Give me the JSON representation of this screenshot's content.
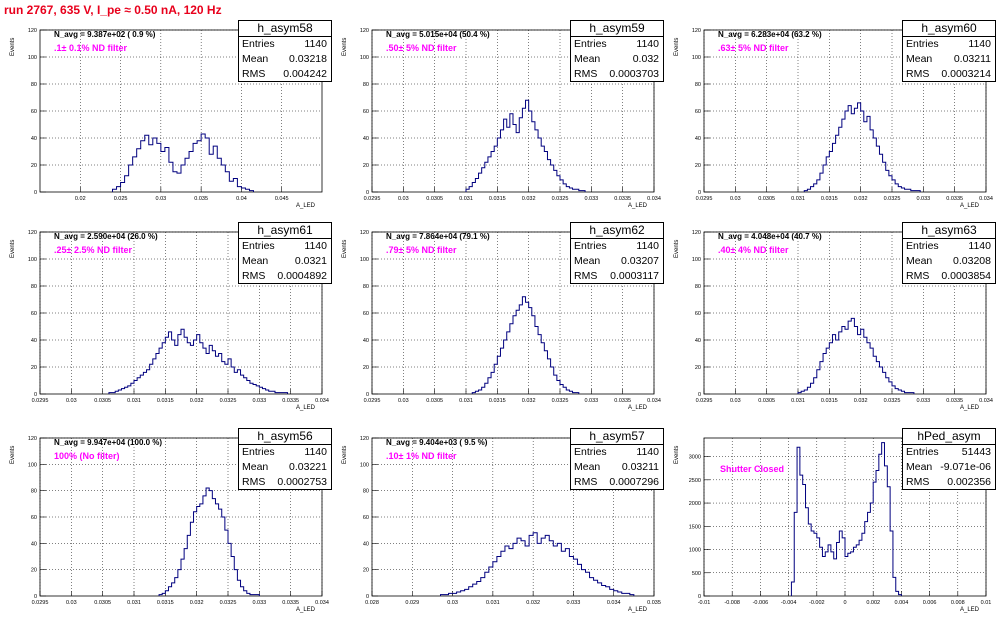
{
  "header": {
    "title": "run 2767,   635 V, I_pe ≈ 0.50 nA, 120 Hz"
  },
  "chart_data": [
    {
      "type": "histogram",
      "title": "h_asym58",
      "xlabel": "A_LED",
      "ylabel": "Events",
      "xlim": [
        0.015,
        0.05
      ],
      "ylim": [
        0,
        120
      ],
      "xticks": [
        "0.02",
        "0.025",
        "0.03",
        "0.035",
        "0.04",
        "0.045"
      ],
      "xtick_values": [
        0.02,
        0.025,
        0.03,
        0.035,
        0.04,
        0.045
      ],
      "yticks": [
        0,
        20,
        40,
        60,
        80,
        100,
        120
      ],
      "grid": true,
      "stats": {
        "entries": "1140",
        "mean": "0.03218",
        "rms": "0.004242"
      },
      "annotations": {
        "n_avg": "N_avg = 9.387e+02 ( 0.9 %)",
        "filter": ".1± 0.1% ND filter"
      },
      "bin_edges": [
        0.024,
        0.0245,
        0.025,
        0.0255,
        0.026,
        0.0265,
        0.027,
        0.0275,
        0.028,
        0.0285,
        0.029,
        0.0295,
        0.03,
        0.0305,
        0.031,
        0.0315,
        0.032,
        0.0325,
        0.033,
        0.0335,
        0.034,
        0.0345,
        0.035,
        0.0355,
        0.036,
        0.0365,
        0.037,
        0.0375,
        0.038,
        0.0385,
        0.039,
        0.0395,
        0.04,
        0.0405,
        0.041,
        0.0415
      ],
      "counts": [
        2,
        4,
        7,
        12,
        20,
        26,
        32,
        38,
        42,
        35,
        40,
        36,
        30,
        33,
        22,
        15,
        14,
        20,
        25,
        30,
        36,
        38,
        43,
        40,
        28,
        34,
        25,
        20,
        15,
        8,
        10,
        4,
        3,
        2,
        1
      ]
    },
    {
      "type": "histogram",
      "title": "h_asym59",
      "xlabel": "A_LED",
      "ylabel": "Events",
      "xlim": [
        0.0295,
        0.034
      ],
      "ylim": [
        0,
        120
      ],
      "xticks": [
        "0.0295",
        "0.03",
        "0.0305",
        "0.031",
        "0.0315",
        "0.032",
        "0.0325",
        "0.033",
        "0.0335",
        "0.034"
      ],
      "xtick_values": [
        0.0295,
        0.03,
        0.0305,
        0.031,
        0.0315,
        0.032,
        0.0325,
        0.033,
        0.0335,
        0.034
      ],
      "yticks": [
        0,
        20,
        40,
        60,
        80,
        100,
        120
      ],
      "grid": true,
      "stats": {
        "entries": "1140",
        "mean": "0.032",
        "rms": "0.0003703"
      },
      "annotations": {
        "n_avg": "N_avg = 5.015e+04 (50.4 %)",
        "filter": ".50± 5% ND filter"
      },
      "bin_edges": [
        0.031,
        0.03105,
        0.0311,
        0.03115,
        0.0312,
        0.03125,
        0.0313,
        0.03135,
        0.0314,
        0.03145,
        0.0315,
        0.03155,
        0.0316,
        0.03165,
        0.0317,
        0.03175,
        0.0318,
        0.03185,
        0.0319,
        0.03195,
        0.032,
        0.03205,
        0.0321,
        0.03215,
        0.0322,
        0.03225,
        0.0323,
        0.03235,
        0.0324,
        0.03245,
        0.0325,
        0.03255,
        0.0326,
        0.03265,
        0.0327,
        0.03275,
        0.0328,
        0.03285,
        0.0329
      ],
      "counts": [
        2,
        4,
        7,
        10,
        14,
        18,
        22,
        26,
        30,
        34,
        40,
        46,
        54,
        48,
        58,
        50,
        44,
        55,
        62,
        68,
        60,
        52,
        46,
        40,
        34,
        30,
        24,
        20,
        16,
        12,
        9,
        6,
        4,
        3,
        2,
        2,
        1,
        1
      ]
    },
    {
      "type": "histogram",
      "title": "h_asym60",
      "xlabel": "A_LED",
      "ylabel": "Events",
      "xlim": [
        0.0295,
        0.034
      ],
      "ylim": [
        0,
        120
      ],
      "xticks": [
        "0.0295",
        "0.03",
        "0.0305",
        "0.031",
        "0.0315",
        "0.032",
        "0.0325",
        "0.033",
        "0.0335",
        "0.034"
      ],
      "xtick_values": [
        0.0295,
        0.03,
        0.0305,
        0.031,
        0.0315,
        0.032,
        0.0325,
        0.033,
        0.0335,
        0.034
      ],
      "yticks": [
        0,
        20,
        40,
        60,
        80,
        100,
        120
      ],
      "grid": true,
      "stats": {
        "entries": "1140",
        "mean": "0.03211",
        "rms": "0.0003214"
      },
      "annotations": {
        "n_avg": "N_avg = 6.283e+04 (63.2 %)",
        "filter": ".63± 5% ND filter"
      },
      "bin_edges": [
        0.0311,
        0.03115,
        0.0312,
        0.03125,
        0.0313,
        0.03135,
        0.0314,
        0.03145,
        0.0315,
        0.03155,
        0.0316,
        0.03165,
        0.0317,
        0.03175,
        0.0318,
        0.03185,
        0.0319,
        0.03195,
        0.032,
        0.03205,
        0.0321,
        0.03215,
        0.0322,
        0.03225,
        0.0323,
        0.03235,
        0.0324,
        0.03245,
        0.0325,
        0.03255,
        0.0326,
        0.03265,
        0.0327,
        0.03275,
        0.0328,
        0.03285,
        0.0329,
        0.03295
      ],
      "counts": [
        1,
        2,
        4,
        6,
        9,
        14,
        20,
        26,
        30,
        36,
        42,
        48,
        54,
        60,
        64,
        58,
        62,
        66,
        60,
        52,
        56,
        46,
        40,
        34,
        28,
        22,
        16,
        12,
        9,
        6,
        4,
        3,
        2,
        2,
        1,
        1,
        1
      ]
    },
    {
      "type": "histogram",
      "title": "h_asym61",
      "xlabel": "A_LED",
      "ylabel": "Events",
      "xlim": [
        0.0295,
        0.034
      ],
      "ylim": [
        0,
        120
      ],
      "xticks": [
        "0.0295",
        "0.03",
        "0.0305",
        "0.031",
        "0.0315",
        "0.032",
        "0.0325",
        "0.033",
        "0.0335",
        "0.034"
      ],
      "xtick_values": [
        0.0295,
        0.03,
        0.0305,
        0.031,
        0.0315,
        0.032,
        0.0325,
        0.033,
        0.0335,
        0.034
      ],
      "yticks": [
        0,
        20,
        40,
        60,
        80,
        100,
        120
      ],
      "grid": true,
      "stats": {
        "entries": "1140",
        "mean": "0.0321",
        "rms": "0.0004892"
      },
      "annotations": {
        "n_avg": "N_avg = 2.590e+04 (26.0 %)",
        "filter": ".25± 2.5% ND filter"
      },
      "bin_edges": [
        0.0306,
        0.03065,
        0.0307,
        0.03075,
        0.0308,
        0.03085,
        0.0309,
        0.03095,
        0.031,
        0.03105,
        0.0311,
        0.03115,
        0.0312,
        0.03125,
        0.0313,
        0.03135,
        0.0314,
        0.03145,
        0.0315,
        0.03155,
        0.0316,
        0.03165,
        0.0317,
        0.03175,
        0.0318,
        0.03185,
        0.0319,
        0.03195,
        0.032,
        0.03205,
        0.0321,
        0.03215,
        0.0322,
        0.03225,
        0.0323,
        0.03235,
        0.0324,
        0.03245,
        0.0325,
        0.03255,
        0.0326,
        0.03265,
        0.0327,
        0.03275,
        0.0328,
        0.03285,
        0.0329,
        0.03295,
        0.033,
        0.03305,
        0.0331,
        0.03315,
        0.0332,
        0.03325,
        0.0333,
        0.03335,
        0.0334,
        0.03345
      ],
      "counts": [
        1,
        1,
        2,
        3,
        4,
        5,
        6,
        8,
        10,
        12,
        14,
        16,
        18,
        22,
        26,
        30,
        34,
        38,
        42,
        46,
        40,
        36,
        44,
        48,
        42,
        38,
        36,
        40,
        44,
        38,
        34,
        30,
        36,
        32,
        28,
        30,
        24,
        22,
        26,
        20,
        16,
        18,
        14,
        12,
        10,
        8,
        7,
        6,
        5,
        4,
        3,
        2,
        2,
        1,
        1,
        1,
        1
      ]
    },
    {
      "type": "histogram",
      "title": "h_asym62",
      "xlabel": "A_LED",
      "ylabel": "Events",
      "xlim": [
        0.0295,
        0.034
      ],
      "ylim": [
        0,
        120
      ],
      "xticks": [
        "0.0295",
        "0.03",
        "0.0305",
        "0.031",
        "0.0315",
        "0.032",
        "0.0325",
        "0.033",
        "0.0335",
        "0.034"
      ],
      "xtick_values": [
        0.0295,
        0.03,
        0.0305,
        0.031,
        0.0315,
        0.032,
        0.0325,
        0.033,
        0.0335,
        0.034
      ],
      "yticks": [
        0,
        20,
        40,
        60,
        80,
        100,
        120
      ],
      "grid": true,
      "stats": {
        "entries": "1140",
        "mean": "0.03207",
        "rms": "0.0003117"
      },
      "annotations": {
        "n_avg": "N_avg = 7.864e+04 (79.1 %)",
        "filter": ".79± 5% ND filter"
      },
      "bin_edges": [
        0.0311,
        0.03115,
        0.0312,
        0.03125,
        0.0313,
        0.03135,
        0.0314,
        0.03145,
        0.0315,
        0.03155,
        0.0316,
        0.03165,
        0.0317,
        0.03175,
        0.0318,
        0.03185,
        0.0319,
        0.03195,
        0.032,
        0.03205,
        0.0321,
        0.03215,
        0.0322,
        0.03225,
        0.0323,
        0.03235,
        0.0324,
        0.03245,
        0.0325,
        0.03255,
        0.0326,
        0.03265,
        0.0327,
        0.03275,
        0.0328
      ],
      "counts": [
        1,
        2,
        3,
        5,
        8,
        12,
        16,
        22,
        28,
        34,
        40,
        46,
        52,
        58,
        62,
        66,
        72,
        68,
        64,
        58,
        50,
        44,
        38,
        32,
        26,
        20,
        14,
        10,
        7,
        5,
        3,
        2,
        1,
        1
      ]
    },
    {
      "type": "histogram",
      "title": "h_asym63",
      "xlabel": "A_LED",
      "ylabel": "Events",
      "xlim": [
        0.0295,
        0.034
      ],
      "ylim": [
        0,
        120
      ],
      "xticks": [
        "0.0295",
        "0.03",
        "0.0305",
        "0.031",
        "0.0315",
        "0.032",
        "0.0325",
        "0.033",
        "0.0335",
        "0.034"
      ],
      "xtick_values": [
        0.0295,
        0.03,
        0.0305,
        0.031,
        0.0315,
        0.032,
        0.0325,
        0.033,
        0.0335,
        0.034
      ],
      "yticks": [
        0,
        20,
        40,
        60,
        80,
        100,
        120
      ],
      "grid": true,
      "stats": {
        "entries": "1140",
        "mean": "0.03208",
        "rms": "0.0003854"
      },
      "annotations": {
        "n_avg": "N_avg = 4.048e+04 (40.7 %)",
        "filter": ".40± 4% ND filter"
      },
      "bin_edges": [
        0.031,
        0.03105,
        0.0311,
        0.03115,
        0.0312,
        0.03125,
        0.0313,
        0.03135,
        0.0314,
        0.03145,
        0.0315,
        0.03155,
        0.0316,
        0.03165,
        0.0317,
        0.03175,
        0.0318,
        0.03185,
        0.0319,
        0.03195,
        0.032,
        0.03205,
        0.0321,
        0.03215,
        0.0322,
        0.03225,
        0.0323,
        0.03235,
        0.0324,
        0.03245,
        0.0325,
        0.03255,
        0.0326,
        0.03265,
        0.0327,
        0.03275,
        0.0328,
        0.03285
      ],
      "counts": [
        1,
        2,
        3,
        5,
        8,
        12,
        18,
        24,
        30,
        34,
        38,
        44,
        40,
        46,
        50,
        48,
        54,
        56,
        50,
        44,
        48,
        42,
        38,
        34,
        28,
        24,
        20,
        16,
        12,
        9,
        6,
        4,
        3,
        2,
        1,
        1,
        1
      ]
    },
    {
      "type": "histogram",
      "title": "h_asym56",
      "xlabel": "A_LED",
      "ylabel": "Events",
      "xlim": [
        0.0295,
        0.034
      ],
      "ylim": [
        0,
        120
      ],
      "xticks": [
        "0.0295",
        "0.03",
        "0.0305",
        "0.031",
        "0.0315",
        "0.032",
        "0.0325",
        "0.033",
        "0.0335",
        "0.034"
      ],
      "xtick_values": [
        0.0295,
        0.03,
        0.0305,
        0.031,
        0.0315,
        0.032,
        0.0325,
        0.033,
        0.0335,
        0.034
      ],
      "yticks": [
        0,
        20,
        40,
        60,
        80,
        100,
        120
      ],
      "grid": true,
      "stats": {
        "entries": "1140",
        "mean": "0.03221",
        "rms": "0.0002753"
      },
      "annotations": {
        "n_avg": "N_avg = 9.947e+04 (100.0 %)",
        "filter": "100% (No filter)"
      },
      "bin_edges": [
        0.0314,
        0.03145,
        0.0315,
        0.03155,
        0.0316,
        0.03165,
        0.0317,
        0.03175,
        0.0318,
        0.03185,
        0.0319,
        0.03195,
        0.032,
        0.03205,
        0.0321,
        0.03215,
        0.0322,
        0.03225,
        0.0323,
        0.03235,
        0.0324,
        0.03245,
        0.0325,
        0.03255,
        0.0326,
        0.03265,
        0.0327,
        0.03275,
        0.0328,
        0.03285,
        0.0329,
        0.03295,
        0.033
      ],
      "counts": [
        1,
        2,
        4,
        7,
        10,
        14,
        20,
        28,
        36,
        46,
        56,
        64,
        68,
        70,
        76,
        82,
        80,
        74,
        70,
        66,
        60,
        50,
        40,
        30,
        20,
        12,
        7,
        4,
        2,
        1,
        1,
        1
      ]
    },
    {
      "type": "histogram",
      "title": "h_asym57",
      "xlabel": "A_LED",
      "ylabel": "Events",
      "xlim": [
        0.028,
        0.035
      ],
      "ylim": [
        0,
        120
      ],
      "xticks": [
        "0.028",
        "0.029",
        "0.03",
        "0.031",
        "0.032",
        "0.033",
        "0.034",
        "0.035"
      ],
      "xtick_values": [
        0.028,
        0.029,
        0.03,
        0.031,
        0.032,
        0.033,
        0.034,
        0.035
      ],
      "yticks": [
        0,
        20,
        40,
        60,
        80,
        100,
        120
      ],
      "grid": true,
      "stats": {
        "entries": "1140",
        "mean": "0.03211",
        "rms": "0.0007296"
      },
      "annotations": {
        "n_avg": "N_avg = 9.404e+03 ( 9.5 %)",
        "filter": ".10± 1% ND filter"
      },
      "bin_edges": [
        0.0297,
        0.0298,
        0.0299,
        0.03,
        0.0301,
        0.0302,
        0.0303,
        0.0304,
        0.0305,
        0.0306,
        0.0307,
        0.0308,
        0.0309,
        0.031,
        0.0311,
        0.0312,
        0.0313,
        0.0314,
        0.0315,
        0.0316,
        0.0317,
        0.0318,
        0.0319,
        0.032,
        0.0321,
        0.0322,
        0.0323,
        0.0324,
        0.0325,
        0.0326,
        0.0327,
        0.0328,
        0.0329,
        0.033,
        0.0331,
        0.0332,
        0.0333,
        0.0334,
        0.0335,
        0.0336,
        0.0337,
        0.0338,
        0.0339,
        0.034,
        0.0341,
        0.0342,
        0.0343,
        0.0344,
        0.0345
      ],
      "counts": [
        1,
        1,
        2,
        2,
        3,
        4,
        5,
        7,
        9,
        11,
        14,
        18,
        22,
        26,
        30,
        34,
        38,
        36,
        40,
        44,
        42,
        38,
        46,
        48,
        40,
        44,
        46,
        42,
        38,
        40,
        34,
        36,
        30,
        28,
        24,
        20,
        18,
        14,
        12,
        10,
        8,
        7,
        5,
        4,
        3,
        2,
        2,
        1
      ]
    },
    {
      "type": "histogram",
      "title": "hPed_asym",
      "xlabel": "A_LED",
      "ylabel": "Events",
      "xlim": [
        -0.01,
        0.01
      ],
      "ylim": [
        0,
        3400
      ],
      "xticks": [
        "-0.01",
        "-0.008",
        "-0.006",
        "-0.004",
        "-0.002",
        "0",
        "0.002",
        "0.004",
        "0.006",
        "0.008",
        "0.01"
      ],
      "xtick_values": [
        -0.01,
        -0.008,
        -0.006,
        -0.004,
        -0.002,
        0,
        0.002,
        0.004,
        0.006,
        0.008,
        0.01
      ],
      "yticks": [
        0,
        500,
        1000,
        1500,
        2000,
        2500,
        3000
      ],
      "grid": true,
      "stats": {
        "entries": "51443",
        "mean": "-9.071e-06",
        "rms": "0.002356"
      },
      "annotations": {
        "n_avg": "",
        "filter": "Shutter Closed"
      },
      "bin_edges": [
        -0.0038,
        -0.0036,
        -0.0034,
        -0.0032,
        -0.003,
        -0.0028,
        -0.0026,
        -0.0024,
        -0.0022,
        -0.002,
        -0.0018,
        -0.0016,
        -0.0014,
        -0.0012,
        -0.001,
        -0.0008,
        -0.0006,
        -0.0004,
        -0.0002,
        0,
        0.0002,
        0.0004,
        0.0006,
        0.0008,
        0.001,
        0.0012,
        0.0014,
        0.0016,
        0.0018,
        0.002,
        0.0022,
        0.0024,
        0.0026,
        0.0028,
        0.003,
        0.0032,
        0.0034,
        0.0036,
        0.0038,
        0.004
      ],
      "counts": [
        300,
        1800,
        3200,
        2600,
        2400,
        1900,
        1550,
        1400,
        1350,
        1250,
        1050,
        850,
        950,
        1100,
        950,
        800,
        1150,
        1400,
        1250,
        850,
        920,
        950,
        1050,
        1100,
        1200,
        1350,
        1600,
        1800,
        2000,
        2450,
        2700,
        3050,
        3300,
        2800,
        2350,
        1400,
        400,
        100,
        30
      ]
    }
  ]
}
